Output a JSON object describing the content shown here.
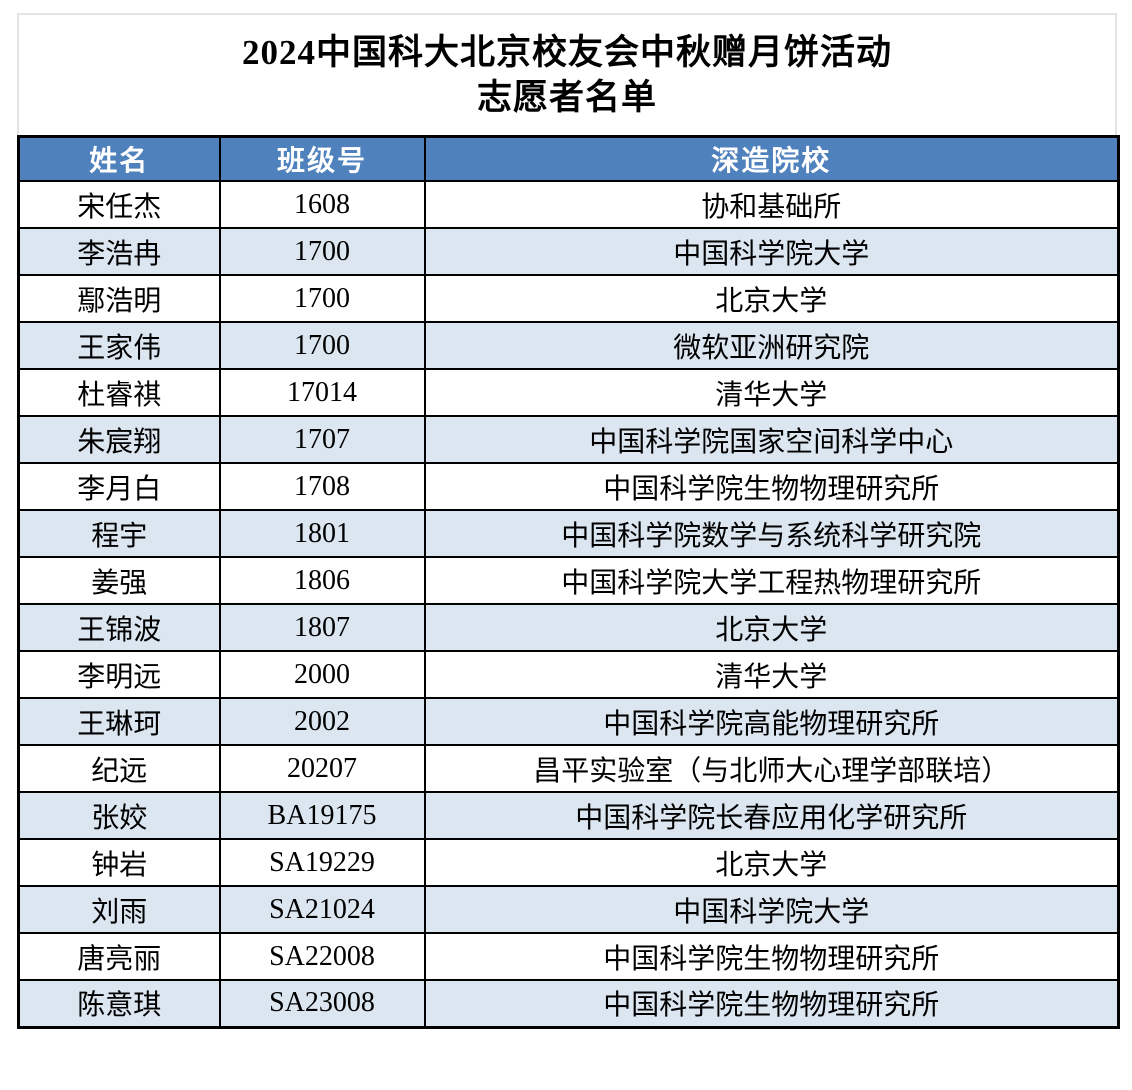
{
  "title": {
    "line1": "2024中国科大北京校友会中秋赠月饼活动",
    "line2": "志愿者名单"
  },
  "table": {
    "headers": [
      "姓名",
      "班级号",
      "深造院校"
    ],
    "rows": [
      [
        "宋任杰",
        "1608",
        "协和基础所"
      ],
      [
        "李浩冉",
        "1700",
        "中国科学院大学"
      ],
      [
        "鄢浩明",
        "1700",
        "北京大学"
      ],
      [
        "王家伟",
        "1700",
        "微软亚洲研究院"
      ],
      [
        "杜睿祺",
        "17014",
        "清华大学"
      ],
      [
        "朱宸翔",
        "1707",
        "中国科学院国家空间科学中心"
      ],
      [
        "李月白",
        "1708",
        "中国科学院生物物理研究所"
      ],
      [
        "程宇",
        "1801",
        "中国科学院数学与系统科学研究院"
      ],
      [
        "姜强",
        "1806",
        "中国科学院大学工程热物理研究所"
      ],
      [
        "王锦波",
        "1807",
        "北京大学"
      ],
      [
        "李明远",
        "2000",
        "清华大学"
      ],
      [
        "王琳珂",
        "2002",
        "中国科学院高能物理研究所"
      ],
      [
        "纪远",
        "20207",
        "昌平实验室（与北师大心理学部联培）"
      ],
      [
        "张姣",
        "BA19175",
        "中国科学院长春应用化学研究所"
      ],
      [
        "钟岩",
        "SA19229",
        "北京大学"
      ],
      [
        "刘雨",
        "SA21024",
        "中国科学院大学"
      ],
      [
        "唐亮丽",
        "SA22008",
        "中国科学院生物物理研究所"
      ],
      [
        "陈意琪",
        "SA23008",
        "中国科学院生物物理研究所"
      ]
    ]
  },
  "colors": {
    "header_bg": "#4F81BD",
    "header_text": "#FFFFFF",
    "row_bg": "#FFFFFF",
    "row_alt_bg": "#DCE6F1",
    "grid_border": "#000000",
    "title_border": "#E4E4E4"
  }
}
